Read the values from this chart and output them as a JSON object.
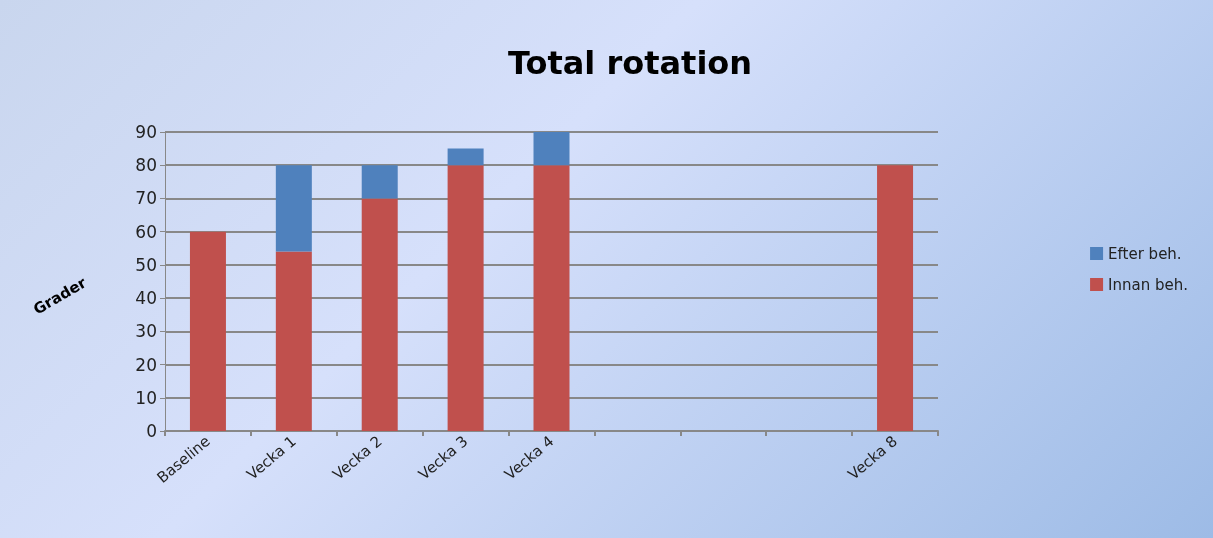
{
  "chart_data": {
    "type": "bar",
    "title": "Total rotation",
    "ylabel": "Grader",
    "categories": [
      "Baseline",
      "Vecka 1",
      "Vecka 2",
      "Vecka 3",
      "Vecka 4",
      null,
      null,
      null,
      "Vecka 8"
    ],
    "stacked": true,
    "series": [
      {
        "name": "Innan beh.",
        "color": "#c0504d",
        "values": [
          60,
          54,
          70,
          80,
          80,
          null,
          null,
          null,
          80
        ]
      },
      {
        "name": "Efter beh.",
        "color": "#4f81bd",
        "values": [
          0,
          26,
          10,
          5,
          10,
          null,
          null,
          null,
          0
        ]
      }
    ],
    "ylim": [
      0,
      90
    ],
    "yticks": [
      0,
      10,
      20,
      30,
      40,
      50,
      60,
      70,
      80,
      90
    ],
    "grid": "y",
    "legend": "right"
  }
}
